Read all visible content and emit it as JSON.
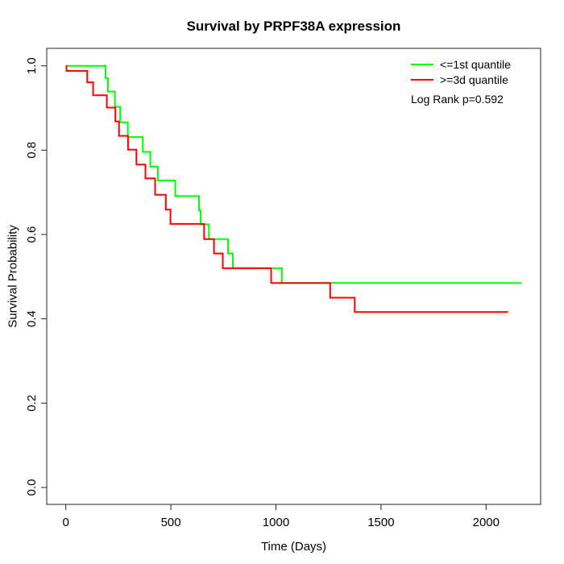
{
  "chart_data": {
    "type": "line",
    "subtype": "kaplan-meier-step",
    "title": "Survival by PRPF38A expression",
    "xlabel": "Time (Days)",
    "ylabel": "Survival Probability",
    "xlim": [
      0,
      2200
    ],
    "ylim": [
      0,
      1
    ],
    "x_ticks": [
      0,
      500,
      1000,
      1500,
      2000
    ],
    "y_ticks": [
      0.0,
      0.2,
      0.4,
      0.6,
      0.8,
      1.0
    ],
    "grid": false,
    "legend_position": "top-right",
    "annotation": "Log Rank p=0.592",
    "axis_color": "#222222",
    "series": [
      {
        "name": "<=1st quantile",
        "color": "#00ff00",
        "end_time": 2170,
        "steps": [
          [
            0,
            1.0
          ],
          [
            189,
            0.971
          ],
          [
            200,
            0.939
          ],
          [
            234,
            0.903
          ],
          [
            259,
            0.866
          ],
          [
            295,
            0.831
          ],
          [
            366,
            0.796
          ],
          [
            402,
            0.761
          ],
          [
            438,
            0.728
          ],
          [
            521,
            0.691
          ],
          [
            634,
            0.657
          ],
          [
            642,
            0.624
          ],
          [
            681,
            0.589
          ],
          [
            772,
            0.555
          ],
          [
            795,
            0.52
          ],
          [
            1028,
            0.485
          ]
        ]
      },
      {
        "name": ">=3d quantile",
        "color": "#ff0000",
        "end_time": 2105,
        "steps": [
          [
            0,
            1.0
          ],
          [
            3,
            0.988
          ],
          [
            102,
            0.961
          ],
          [
            130,
            0.93
          ],
          [
            195,
            0.901
          ],
          [
            236,
            0.868
          ],
          [
            253,
            0.834
          ],
          [
            296,
            0.801
          ],
          [
            336,
            0.766
          ],
          [
            379,
            0.733
          ],
          [
            425,
            0.694
          ],
          [
            476,
            0.659
          ],
          [
            498,
            0.625
          ],
          [
            658,
            0.589
          ],
          [
            705,
            0.555
          ],
          [
            747,
            0.52
          ],
          [
            977,
            0.485
          ],
          [
            1258,
            0.45
          ],
          [
            1375,
            0.416
          ]
        ]
      }
    ]
  }
}
